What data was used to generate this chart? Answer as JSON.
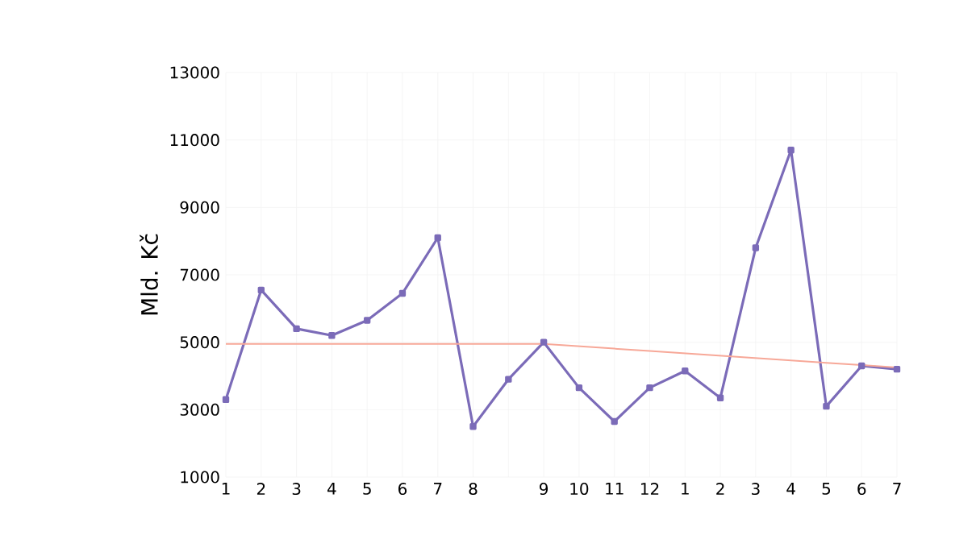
{
  "chart_data": {
    "type": "line",
    "ylabel": "Mld. Kč",
    "categories": [
      "1",
      "2",
      "3",
      "4",
      "5",
      "6",
      "7",
      "8",
      null,
      "9",
      "10",
      "11",
      "12",
      "1",
      "2",
      "3",
      "4",
      "5",
      "6",
      "7"
    ],
    "ylim": [
      1000,
      13000
    ],
    "yticks": [
      1000,
      3000,
      5000,
      7000,
      9000,
      11000,
      13000
    ],
    "grid": true,
    "marker": "square",
    "line_style": "solid",
    "series": [
      {
        "color": "#7b6bb8",
        "values": [
          3300,
          6550,
          5400,
          5200,
          5650,
          6450,
          8100,
          2500,
          3900,
          5000,
          3650,
          2650,
          3650,
          4150,
          3350,
          7800,
          10700,
          3100,
          4300,
          4200
        ]
      },
      {
        "color": "#f7a898",
        "values": [
          4950,
          4950,
          4950,
          4950,
          4950,
          4950,
          4950,
          4950,
          4950,
          4950,
          4880,
          4810,
          4740,
          4670,
          4600,
          4530,
          4460,
          4390,
          4320,
          4250
        ],
        "marker": "none"
      }
    ]
  }
}
